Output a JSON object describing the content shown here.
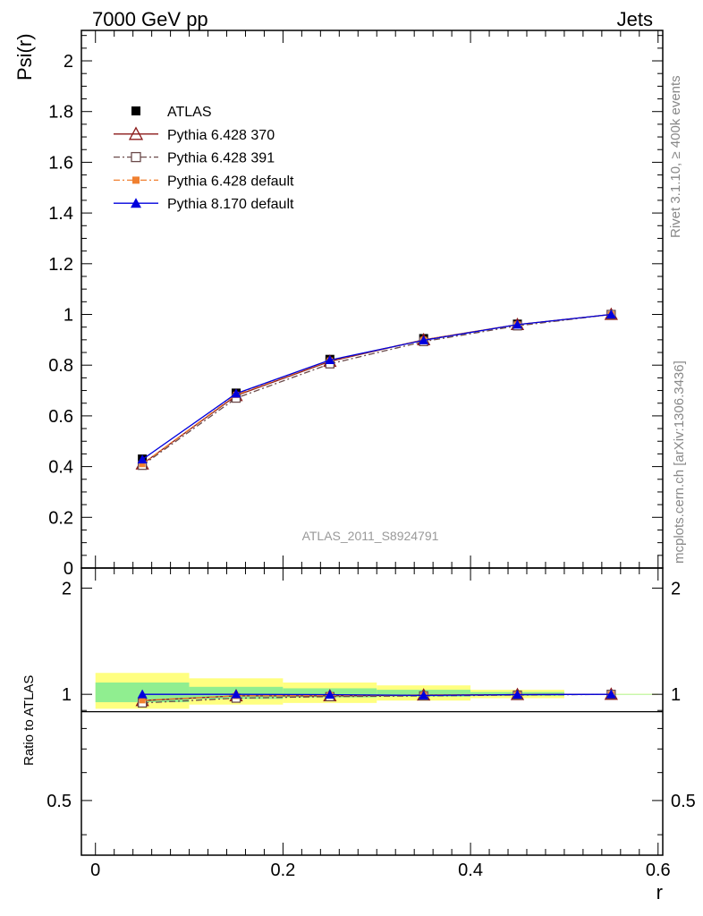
{
  "header": {
    "left": "7000 GeV pp",
    "right": "Jets"
  },
  "side_text": {
    "rivet": "Rivet 3.1.10, ≥ 400k events",
    "mcplots": "mcplots.cern.ch [arXiv:1306.3436]"
  },
  "watermark": "ATLAS_2011_S8924791",
  "colors": {
    "atlas": "#000000",
    "py6_370": "#8b1a1a",
    "py6_391": "#6b4a4a",
    "py6_default": "#f08030",
    "py8_default": "#0000dd",
    "band_inner": "#90ee90",
    "band_outer": "#ffff80"
  },
  "chart_data": [
    {
      "type": "line",
      "ylabel": "Psi(r)",
      "xlim": [
        -0.015,
        0.605
      ],
      "ylim": [
        0,
        2.12
      ],
      "yticks": [
        {
          "v": 0,
          "label": "0"
        },
        {
          "v": 0.2,
          "label": "0.2"
        },
        {
          "v": 0.4,
          "label": "0.4"
        },
        {
          "v": 0.6,
          "label": "0.6"
        },
        {
          "v": 0.8,
          "label": "0.8"
        },
        {
          "v": 1,
          "label": "1"
        },
        {
          "v": 1.2,
          "label": "1.2"
        },
        {
          "v": 1.4,
          "label": "1.4"
        },
        {
          "v": 1.6,
          "label": "1.6"
        },
        {
          "v": 1.8,
          "label": "1.8"
        },
        {
          "v": 2,
          "label": "2"
        }
      ],
      "x": [
        0.05,
        0.15,
        0.25,
        0.35,
        0.45,
        0.55
      ],
      "series": [
        {
          "name": "ATLAS",
          "values": [
            0.43,
            0.69,
            0.823,
            0.905,
            0.962,
            1.0
          ],
          "style": "data"
        },
        {
          "name": "Pythia 6.428 370",
          "values": [
            0.41,
            0.68,
            0.815,
            0.9,
            0.96,
            1.0
          ],
          "style": "open-triangle"
        },
        {
          "name": "Pythia 6.428 391",
          "values": [
            0.405,
            0.67,
            0.805,
            0.893,
            0.955,
            1.0
          ],
          "style": "open-square"
        },
        {
          "name": "Pythia 6.428 default",
          "values": [
            0.41,
            0.683,
            0.818,
            0.9,
            0.96,
            1.0
          ],
          "style": "filled-square"
        },
        {
          "name": "Pythia 8.170 default",
          "values": [
            0.428,
            0.688,
            0.82,
            0.898,
            0.96,
            1.0
          ],
          "style": "filled-triangle"
        }
      ]
    },
    {
      "type": "line",
      "ylabel": "Ratio to ATLAS",
      "xlabel": "r",
      "ylim": [
        0.35,
        2.28
      ],
      "yticks": [
        {
          "v": 0.5,
          "label": "0.5"
        },
        {
          "v": 1,
          "label": "1"
        },
        {
          "v": 2,
          "label": "2"
        }
      ],
      "xticks": [
        {
          "v": 0,
          "label": "0"
        },
        {
          "v": 0.2,
          "label": "0.2"
        },
        {
          "v": 0.4,
          "label": "0.4"
        },
        {
          "v": 0.6,
          "label": "0.6"
        }
      ],
      "bands": [
        {
          "x0": 0.0,
          "x1": 0.1,
          "inner": [
            0.95,
            1.08
          ],
          "outer": [
            0.91,
            1.15
          ]
        },
        {
          "x0": 0.1,
          "x1": 0.2,
          "inner": [
            0.97,
            1.05
          ],
          "outer": [
            0.935,
            1.11
          ]
        },
        {
          "x0": 0.2,
          "x1": 0.3,
          "inner": [
            0.98,
            1.04
          ],
          "outer": [
            0.945,
            1.08
          ]
        },
        {
          "x0": 0.3,
          "x1": 0.4,
          "inner": [
            0.985,
            1.03
          ],
          "outer": [
            0.96,
            1.06
          ]
        },
        {
          "x0": 0.4,
          "x1": 0.5,
          "inner": [
            0.99,
            1.015
          ],
          "outer": [
            0.975,
            1.03
          ]
        },
        {
          "x0": 0.5,
          "x1": 0.6,
          "inner": [
            0.998,
            1.002
          ],
          "outer": [
            0.997,
            1.003
          ]
        }
      ],
      "x": [
        0.05,
        0.15,
        0.25,
        0.35,
        0.45,
        0.55
      ],
      "series": [
        {
          "name": "Pythia 6.428 370",
          "values": [
            0.96,
            0.99,
            0.99,
            0.995,
            0.998,
            1.0
          ],
          "style": "open-triangle"
        },
        {
          "name": "Pythia 6.428 391",
          "values": [
            0.945,
            0.975,
            0.985,
            0.99,
            0.995,
            1.0
          ],
          "style": "open-square"
        },
        {
          "name": "Pythia 6.428 default",
          "values": [
            0.962,
            0.99,
            0.993,
            0.995,
            0.998,
            1.0
          ],
          "style": "filled-square"
        },
        {
          "name": "Pythia 8.170 default",
          "values": [
            1.0,
            1.0,
            0.998,
            0.993,
            0.998,
            1.0
          ],
          "style": "filled-triangle"
        }
      ]
    }
  ]
}
